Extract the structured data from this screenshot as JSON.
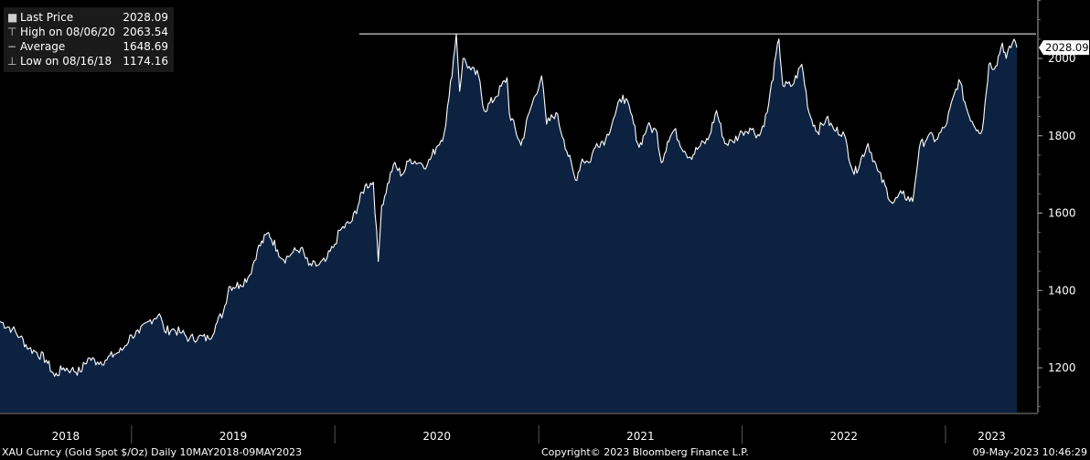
{
  "legend": {
    "items": [
      {
        "label": "Last Price",
        "value": "2028.09",
        "icon": "filled-square-icon"
      },
      {
        "label": "High on 08/06/20",
        "value": "2063.54",
        "icon": "high-marker-icon"
      },
      {
        "label": "Average",
        "value": "1648.69",
        "icon": "average-marker-icon"
      },
      {
        "label": "Low on 08/16/18",
        "value": "1174.16",
        "icon": "low-marker-icon"
      }
    ]
  },
  "last_price_tag": "2028.09",
  "footer": {
    "left": "XAU Curncy (Gold Spot  $/Oz)  Daily 10MAY2018-09MAY2023",
    "center": "Copyright© 2023 Bloomberg Finance L.P.",
    "right": "09-May-2023 10:46:29"
  },
  "colors": {
    "area_fill": "#0c2240",
    "line": "#ffffff",
    "background": "#000000",
    "axis_text": "#ffffff"
  },
  "chart_data": {
    "type": "area",
    "ylim": [
      1090,
      2160
    ],
    "yticks": [
      1200,
      1400,
      1600,
      1800,
      2000
    ],
    "x_tick_labels": [
      "2018",
      "2019",
      "2020",
      "2021",
      "2022",
      "2023"
    ],
    "x_range": [
      "2018-05-10",
      "2023-05-09"
    ],
    "high_line": 2063.54,
    "last_price": 2028.09,
    "series": [
      {
        "values": [
          [
            "2018-05-10",
            1320
          ],
          [
            "2018-06-01",
            1300
          ],
          [
            "2018-06-15",
            1280
          ],
          [
            "2018-07-01",
            1250
          ],
          [
            "2018-07-15",
            1240
          ],
          [
            "2018-08-01",
            1220
          ],
          [
            "2018-08-16",
            1178
          ],
          [
            "2018-09-01",
            1200
          ],
          [
            "2018-09-15",
            1195
          ],
          [
            "2018-10-01",
            1190
          ],
          [
            "2018-10-15",
            1225
          ],
          [
            "2018-11-01",
            1215
          ],
          [
            "2018-11-15",
            1220
          ],
          [
            "2018-12-01",
            1235
          ],
          [
            "2018-12-15",
            1245
          ],
          [
            "2019-01-01",
            1285
          ],
          [
            "2019-01-15",
            1290
          ],
          [
            "2019-02-01",
            1320
          ],
          [
            "2019-02-20",
            1340
          ],
          [
            "2019-03-01",
            1295
          ],
          [
            "2019-03-15",
            1300
          ],
          [
            "2019-04-01",
            1290
          ],
          [
            "2019-04-15",
            1275
          ],
          [
            "2019-05-01",
            1280
          ],
          [
            "2019-05-20",
            1275
          ],
          [
            "2019-06-01",
            1310
          ],
          [
            "2019-06-15",
            1345
          ],
          [
            "2019-06-25",
            1410
          ],
          [
            "2019-07-15",
            1415
          ],
          [
            "2019-08-01",
            1440
          ],
          [
            "2019-08-15",
            1505
          ],
          [
            "2019-09-04",
            1550
          ],
          [
            "2019-09-20",
            1505
          ],
          [
            "2019-10-01",
            1480
          ],
          [
            "2019-10-15",
            1495
          ],
          [
            "2019-11-01",
            1510
          ],
          [
            "2019-11-15",
            1465
          ],
          [
            "2019-12-01",
            1465
          ],
          [
            "2019-12-15",
            1475
          ],
          [
            "2020-01-01",
            1520
          ],
          [
            "2020-01-10",
            1555
          ],
          [
            "2020-02-01",
            1580
          ],
          [
            "2020-02-24",
            1670
          ],
          [
            "2020-03-10",
            1680
          ],
          [
            "2020-03-19",
            1475
          ],
          [
            "2020-03-25",
            1620
          ],
          [
            "2020-04-15",
            1725
          ],
          [
            "2020-05-01",
            1700
          ],
          [
            "2020-05-15",
            1740
          ],
          [
            "2020-06-01",
            1730
          ],
          [
            "2020-06-15",
            1725
          ],
          [
            "2020-07-01",
            1770
          ],
          [
            "2020-07-15",
            1805
          ],
          [
            "2020-07-24",
            1900
          ],
          [
            "2020-08-06",
            2063
          ],
          [
            "2020-08-12",
            1915
          ],
          [
            "2020-08-18",
            2000
          ],
          [
            "2020-09-01",
            1970
          ],
          [
            "2020-09-15",
            1955
          ],
          [
            "2020-09-25",
            1865
          ],
          [
            "2020-10-15",
            1900
          ],
          [
            "2020-11-05",
            1950
          ],
          [
            "2020-11-09",
            1860
          ],
          [
            "2020-11-30",
            1775
          ],
          [
            "2020-12-15",
            1860
          ],
          [
            "2021-01-06",
            1955
          ],
          [
            "2021-01-15",
            1830
          ],
          [
            "2021-02-01",
            1860
          ],
          [
            "2021-02-15",
            1790
          ],
          [
            "2021-03-08",
            1685
          ],
          [
            "2021-03-20",
            1740
          ],
          [
            "2021-04-01",
            1730
          ],
          [
            "2021-04-15",
            1780
          ],
          [
            "2021-05-01",
            1790
          ],
          [
            "2021-05-15",
            1845
          ],
          [
            "2021-06-01",
            1905
          ],
          [
            "2021-06-15",
            1860
          ],
          [
            "2021-06-30",
            1770
          ],
          [
            "2021-07-15",
            1825
          ],
          [
            "2021-08-01",
            1810
          ],
          [
            "2021-08-09",
            1730
          ],
          [
            "2021-08-20",
            1785
          ],
          [
            "2021-09-01",
            1815
          ],
          [
            "2021-09-20",
            1760
          ],
          [
            "2021-09-30",
            1745
          ],
          [
            "2021-10-15",
            1770
          ],
          [
            "2021-11-01",
            1790
          ],
          [
            "2021-11-16",
            1865
          ],
          [
            "2021-12-01",
            1780
          ],
          [
            "2021-12-15",
            1785
          ],
          [
            "2022-01-01",
            1810
          ],
          [
            "2022-01-15",
            1820
          ],
          [
            "2022-02-01",
            1800
          ],
          [
            "2022-02-15",
            1860
          ],
          [
            "2022-03-08",
            2050
          ],
          [
            "2022-03-15",
            1930
          ],
          [
            "2022-04-01",
            1930
          ],
          [
            "2022-04-18",
            1985
          ],
          [
            "2022-05-01",
            1860
          ],
          [
            "2022-05-16",
            1810
          ],
          [
            "2022-06-01",
            1845
          ],
          [
            "2022-06-15",
            1815
          ],
          [
            "2022-07-01",
            1810
          ],
          [
            "2022-07-21",
            1700
          ],
          [
            "2022-08-15",
            1780
          ],
          [
            "2022-09-01",
            1710
          ],
          [
            "2022-09-28",
            1625
          ],
          [
            "2022-10-15",
            1650
          ],
          [
            "2022-11-03",
            1630
          ],
          [
            "2022-11-15",
            1770
          ],
          [
            "2022-12-01",
            1800
          ],
          [
            "2022-12-15",
            1790
          ],
          [
            "2023-01-01",
            1825
          ],
          [
            "2023-01-25",
            1945
          ],
          [
            "2023-02-10",
            1860
          ],
          [
            "2023-02-28",
            1815
          ],
          [
            "2023-03-08",
            1815
          ],
          [
            "2023-03-20",
            1985
          ],
          [
            "2023-04-01",
            1980
          ],
          [
            "2023-04-13",
            2040
          ],
          [
            "2023-04-20",
            2000
          ],
          [
            "2023-05-04",
            2050
          ],
          [
            "2023-05-09",
            2028
          ]
        ]
      }
    ]
  }
}
